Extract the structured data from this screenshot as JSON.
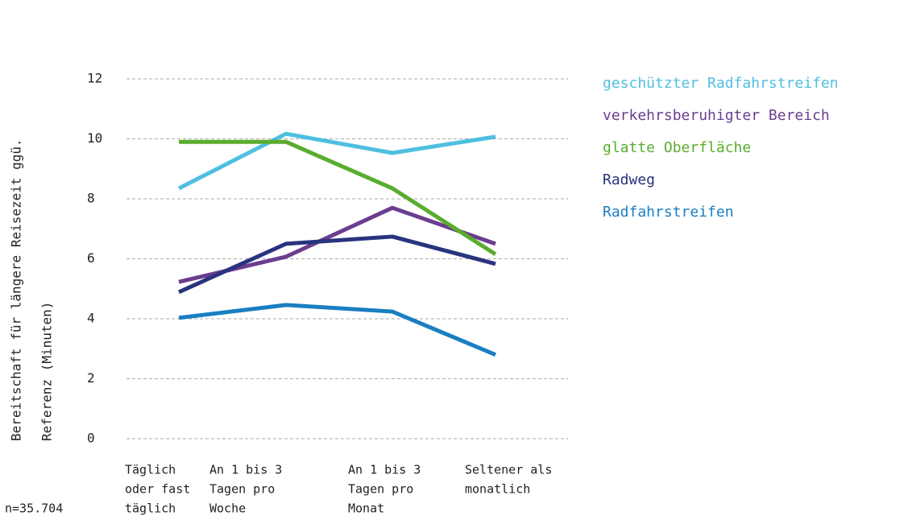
{
  "chart_data": {
    "type": "line",
    "ylabel": [
      "Bereitschaft für längere Reisezeit ggü.",
      "Referenz (Minuten)"
    ],
    "note": "n=35.704",
    "categories": [
      [
        "Täglich",
        "oder fast",
        "täglich"
      ],
      [
        "An 1 bis 3",
        "Tagen pro",
        "Woche"
      ],
      [
        "An 1 bis 3",
        "Tagen pro",
        "Monat"
      ],
      [
        "Seltener als",
        "monatlich"
      ]
    ],
    "series": [
      {
        "name": "geschützter Radfahrstreifen",
        "color": "#4fbfe0",
        "values": [
          8.35,
          10.17,
          9.53,
          10.07
        ]
      },
      {
        "name": "verkehrsberuhigter Bereich",
        "color": "#6b3d8f",
        "values": [
          5.23,
          6.07,
          7.7,
          6.5
        ]
      },
      {
        "name": "glatte Oberfläche",
        "color": "#5aac2e",
        "values": [
          9.9,
          9.9,
          8.35,
          6.15
        ]
      },
      {
        "name": "Radweg",
        "color": "#29347e",
        "values": [
          4.89,
          6.5,
          6.74,
          5.83
        ]
      },
      {
        "name": "Radfahrstreifen",
        "color": "#1a7ec2",
        "values": [
          4.03,
          4.46,
          4.24,
          2.8
        ]
      }
    ],
    "ylim": [
      0,
      12
    ],
    "yticks": [
      0,
      2,
      4,
      6,
      8,
      10,
      12
    ],
    "grid": true,
    "legend": "right"
  }
}
